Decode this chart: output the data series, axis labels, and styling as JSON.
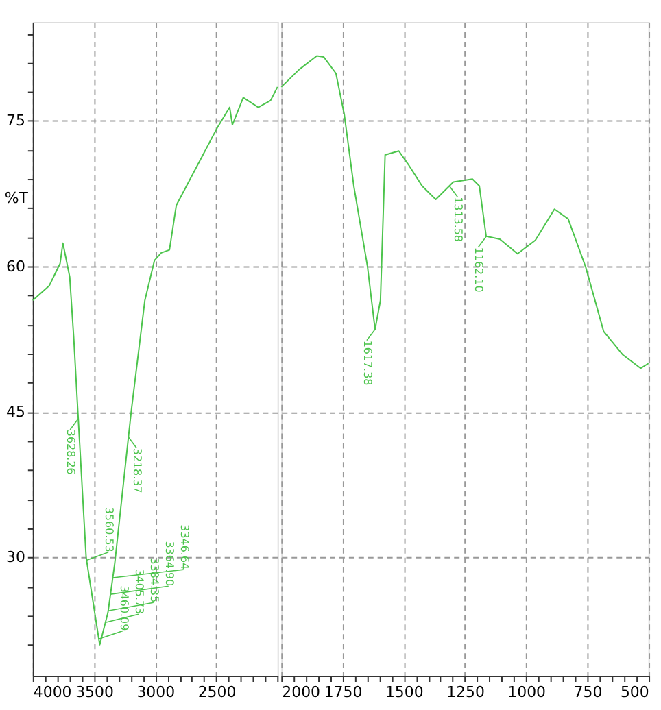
{
  "chart_data": [
    {
      "type": "line",
      "ylabel": "%T",
      "xlim": [
        4000,
        2000
      ],
      "ylim": [
        17.8,
        85.2
      ],
      "xticks": [
        4000,
        {
          "value": 3900,
          "label": null
        },
        {
          "value": 3800,
          "label": null
        },
        {
          "value": 3700,
          "label": null
        },
        {
          "value": 3600,
          "label": null
        },
        3500,
        {
          "value": 3400,
          "label": null
        },
        {
          "value": 3300,
          "label": null
        },
        {
          "value": 3200,
          "label": null
        },
        {
          "value": 3100,
          "label": null
        },
        3000,
        {
          "value": 2900,
          "label": null
        },
        {
          "value": 2800,
          "label": null
        },
        {
          "value": 2700,
          "label": null
        },
        {
          "value": 2600,
          "label": null
        },
        2500,
        {
          "value": 2400,
          "label": null
        },
        {
          "value": 2300,
          "label": null
        },
        {
          "value": 2200,
          "label": null
        },
        {
          "value": 2100,
          "label": null
        },
        {
          "value": 2000,
          "label": null
        }
      ],
      "yticks": [
        {
          "value": 21,
          "label": null
        },
        {
          "value": 24,
          "label": null
        },
        {
          "value": 27,
          "label": null
        },
        30,
        {
          "value": 33,
          "label": null
        },
        {
          "value": 36,
          "label": null
        },
        {
          "value": 39,
          "label": null
        },
        {
          "value": 42,
          "label": null
        },
        45,
        {
          "value": 48,
          "label": null
        },
        {
          "value": 51,
          "label": null
        },
        {
          "value": 54,
          "label": null
        },
        {
          "value": 57,
          "label": null
        },
        60,
        {
          "value": 63,
          "label": null
        },
        {
          "value": 66,
          "label": null
        },
        {
          "value": 69,
          "label": null
        },
        {
          "value": 72,
          "label": null
        },
        75,
        {
          "value": 78,
          "label": null
        },
        {
          "value": 81,
          "label": null
        },
        {
          "value": 84,
          "label": null
        }
      ],
      "grid": true,
      "series": [
        {
          "color": "#4cc44c",
          "x": [
            4000,
            3866,
            3777,
            3754,
            3698,
            3665,
            3631,
            3564,
            3453,
            3386,
            3330,
            3196,
            3084,
            3006,
            2950,
            2883,
            2827,
            2492,
            2391,
            2369,
            2280,
            2157,
            2057,
            2000
          ],
          "values": [
            56.5,
            58,
            60.3,
            62.4,
            58.9,
            52.6,
            44.9,
            30,
            21,
            24.3,
            29.4,
            45,
            56.5,
            60.6,
            61.4,
            61.7,
            66.3,
            74.3,
            76.4,
            74.6,
            77.4,
            76.4,
            77.1,
            78.5
          ]
        }
      ],
      "annotations": [
        {
          "text": "3628.26",
          "x": 3628.26,
          "y": 44.3
        },
        {
          "text": "3560.53",
          "x": 3560.53,
          "y": 29.7
        },
        {
          "text": "3460.09",
          "x": 3460.09,
          "y": 21.6
        },
        {
          "text": "3405.73",
          "x": 3405.73,
          "y": 23.3
        },
        {
          "text": "3384.35",
          "x": 3384.35,
          "y": 24.5
        },
        {
          "text": "3364.90",
          "x": 3364.9,
          "y": 26.2
        },
        {
          "text": "3346.64",
          "x": 3346.64,
          "y": 27.9
        },
        {
          "text": "3218.37",
          "x": 3218.37,
          "y": 42.4
        }
      ]
    },
    {
      "type": "line",
      "xlim": [
        2000,
        500
      ],
      "ylim": [
        17.8,
        85.2
      ],
      "xticks": [
        2000,
        {
          "value": 1950,
          "label": null
        },
        {
          "value": 1900,
          "label": null
        },
        {
          "value": 1850,
          "label": null
        },
        {
          "value": 1800,
          "label": null
        },
        1750,
        {
          "value": 1700,
          "label": null
        },
        {
          "value": 1650,
          "label": null
        },
        {
          "value": 1600,
          "label": null
        },
        {
          "value": 1550,
          "label": null
        },
        1500,
        {
          "value": 1450,
          "label": null
        },
        {
          "value": 1400,
          "label": null
        },
        {
          "value": 1350,
          "label": null
        },
        {
          "value": 1300,
          "label": null
        },
        1250,
        {
          "value": 1200,
          "label": null
        },
        {
          "value": 1150,
          "label": null
        },
        {
          "value": 1100,
          "label": null
        },
        {
          "value": 1050,
          "label": null
        },
        1000,
        {
          "value": 950,
          "label": null
        },
        {
          "value": 900,
          "label": null
        },
        {
          "value": 850,
          "label": null
        },
        {
          "value": 800,
          "label": null
        },
        750,
        {
          "value": 700,
          "label": null
        },
        {
          "value": 650,
          "label": null
        },
        {
          "value": 600,
          "label": null
        },
        {
          "value": 550,
          "label": null
        },
        500
      ],
      "yticks": [
        30,
        45,
        60,
        75
      ],
      "tick_labels": "x",
      "grid": true,
      "series": [
        {
          "color": "#4cc44c",
          "x": [
            2000,
            1927,
            1855,
            1827,
            1777,
            1743,
            1704,
            1648,
            1617,
            1595,
            1583,
            1576,
            1520,
            1481,
            1425,
            1369,
            1297,
            1219,
            1191,
            1163,
            1107,
            1035,
            962,
            884,
            828,
            756,
            683,
            605,
            532,
            500
          ],
          "values": [
            78.5,
            80.3,
            81.7,
            81.6,
            79.9,
            75.7,
            68.3,
            60,
            53.5,
            56.5,
            65.9,
            71.5,
            71.9,
            70.5,
            68.3,
            66.9,
            68.7,
            69,
            68.3,
            63.1,
            62.8,
            61.3,
            62.7,
            65.9,
            64.9,
            59.9,
            53.3,
            50.9,
            49.5,
            50
          ]
        }
      ],
      "annotations": [
        {
          "text": "1617.38",
          "x": 1617.38,
          "y": 53.5
        },
        {
          "text": "1313.58",
          "x": 1313.58,
          "y": 68.3
        },
        {
          "text": "1162.10",
          "x": 1162.1,
          "y": 63.1
        }
      ]
    }
  ]
}
